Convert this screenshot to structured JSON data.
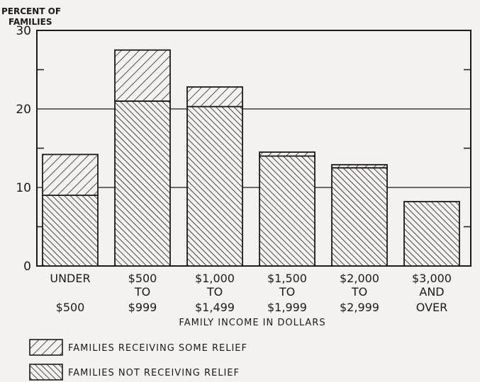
{
  "chart_data": {
    "type": "bar",
    "stacked": true,
    "ylabel": "PERCENT OF FAMILIES",
    "xlabel": "FAMILY INCOME IN DOLLARS",
    "ylim": [
      0,
      30
    ],
    "yticks": [
      0,
      10,
      20,
      30
    ],
    "grid": "horizontal at 10 and 20",
    "legend_position": "bottom-left",
    "categories": [
      [
        "UNDER",
        "",
        "$500"
      ],
      [
        "$500",
        "TO",
        "$999"
      ],
      [
        "$1,000",
        "TO",
        "$1,499"
      ],
      [
        "$1,500",
        "TO",
        "$1,999"
      ],
      [
        "$2,000",
        "TO",
        "$2,999"
      ],
      [
        "$3,000",
        "AND",
        "OVER"
      ]
    ],
    "series": [
      {
        "name": "FAMILIES NOT RECEIVING RELIEF",
        "values": [
          9.0,
          21.0,
          20.3,
          14.0,
          12.5,
          8.2
        ],
        "hatch": "forward-diagonal-dense"
      },
      {
        "name": "FAMILIES RECEIVING SOME RELIEF",
        "values": [
          5.2,
          6.5,
          2.5,
          0.5,
          0.4,
          0.0
        ],
        "hatch": "backward-diagonal-sparse"
      }
    ],
    "legend": [
      "FAMILIES RECEIVING SOME RELIEF",
      "FAMILIES NOT RECEIVING RELIEF"
    ]
  }
}
